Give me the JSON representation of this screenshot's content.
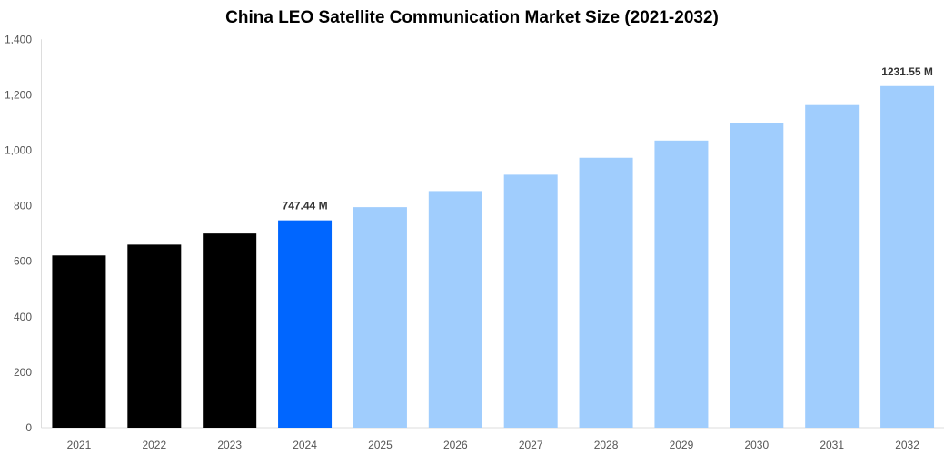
{
  "chart_data": {
    "type": "bar",
    "title": "China LEO Satellite Communication Market Size (2021-2032)",
    "xlabel": "",
    "ylabel": "",
    "categories": [
      "2021",
      "2022",
      "2023",
      "2024",
      "2025",
      "2026",
      "2027",
      "2028",
      "2029",
      "2030",
      "2031",
      "2032"
    ],
    "values": [
      621,
      660,
      700,
      747.44,
      795,
      853,
      912,
      973,
      1035,
      1099,
      1163,
      1231.55
    ],
    "bar_colors": [
      "#000000",
      "#000000",
      "#000000",
      "#0066ff",
      "#a0cdfd",
      "#a0cdfd",
      "#a0cdfd",
      "#a0cdfd",
      "#a0cdfd",
      "#a0cdfd",
      "#a0cdfd",
      "#a0cdfd"
    ],
    "data_labels": {
      "2024": "747.44 M",
      "2032": "1231.55 M"
    },
    "ylim": [
      0,
      1400
    ],
    "yticks": [
      0,
      200,
      400,
      600,
      800,
      1000,
      1200,
      1400
    ],
    "ytick_labels": [
      "0",
      "200",
      "400",
      "600",
      "800",
      "1,000",
      "1,200",
      "1,400"
    ],
    "grid": false,
    "legend": "none"
  }
}
